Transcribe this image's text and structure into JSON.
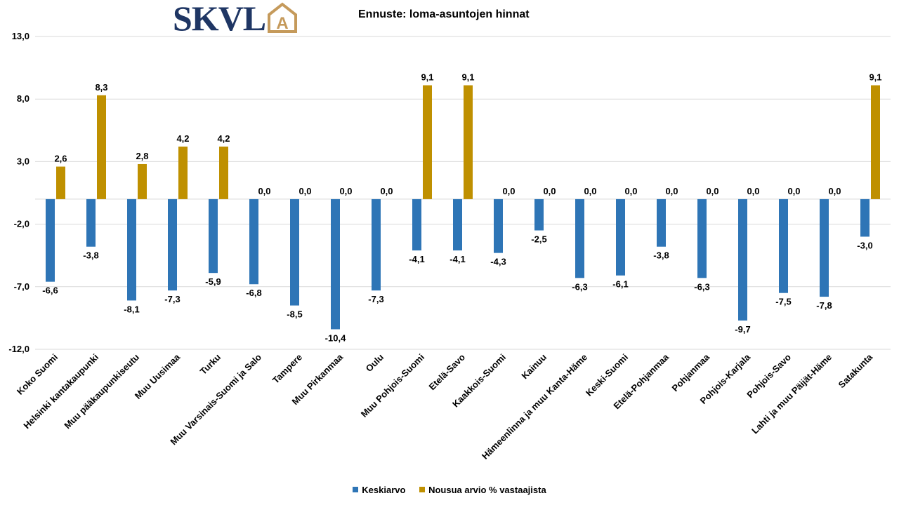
{
  "logo": {
    "text": "SKVL",
    "glyph": "A",
    "brand_color": "#1f3664",
    "accent_color": "#c59a5b"
  },
  "chart_data": {
    "type": "bar",
    "title": "Ennuste: loma-asuntojen hinnat",
    "xlabel": "",
    "ylabel": "",
    "ylim": [
      -12.0,
      13.0
    ],
    "yticks": [
      -12.0,
      -7.0,
      -2.0,
      3.0,
      8.0,
      13.0
    ],
    "ytick_labels": [
      "-12,0",
      "-7,0",
      "-2,0",
      "3,0",
      "8,0",
      "13,0"
    ],
    "grid": true,
    "legend_position": "bottom",
    "categories": [
      "Koko Suomi",
      "Helsinki kantakaupunki",
      "Muu pääkaupunkiseutu",
      "Muu Uusimaa",
      "Turku",
      "Muu Varsinais-Suomi ja Salo",
      "Tampere",
      "Muu Pirkanmaa",
      "Oulu",
      "Muu Pohjois-Suomi",
      "Etelä-Savo",
      "Kaakkois-Suomi",
      "Kainuu",
      "Hämeenlinna ja muu Kanta-Häme",
      "Keski-Suomi",
      "Etelä-Pohjanmaa",
      "Pohjanmaa",
      "Pohjois-Karjala",
      "Pohjois-Savo",
      "Lahti ja muu Päijät-Häme",
      "Satakunta"
    ],
    "series": [
      {
        "name": "Keskiarvo",
        "color": "#2e75b6",
        "values": [
          -6.6,
          -3.8,
          -8.1,
          -7.3,
          -5.9,
          -6.8,
          -8.5,
          -10.4,
          -7.3,
          -4.1,
          -4.1,
          -4.3,
          -2.5,
          -6.3,
          -6.1,
          -3.8,
          -6.3,
          -9.7,
          -7.5,
          -7.8,
          -3.0
        ],
        "labels": [
          "-6,6",
          "-3,8",
          "-8,1",
          "-7,3",
          "-5,9",
          "-6,8",
          "-8,5",
          "-10,4",
          "-7,3",
          "-4,1",
          "-4,1",
          "-4,3",
          "-2,5",
          "-6,3",
          "-6,1",
          "-3,8",
          "-6,3",
          "-9,7",
          "-7,5",
          "-7,8",
          "-3,0"
        ]
      },
      {
        "name": "Nousua arvio % vastaajista",
        "color": "#bf9000",
        "values": [
          2.6,
          8.3,
          2.8,
          4.2,
          4.2,
          0.0,
          0.0,
          0.0,
          0.0,
          9.1,
          9.1,
          0.0,
          0.0,
          0.0,
          0.0,
          0.0,
          0.0,
          0.0,
          0.0,
          0.0,
          9.1
        ],
        "labels": [
          "2,6",
          "8,3",
          "2,8",
          "4,2",
          "4,2",
          "0,0",
          "0,0",
          "0,0",
          "0,0",
          "9,1",
          "9,1",
          "0,0",
          "0,0",
          "0,0",
          "0,0",
          "0,0",
          "0,0",
          "0,0",
          "0,0",
          "0,0",
          "9,1"
        ]
      }
    ]
  }
}
